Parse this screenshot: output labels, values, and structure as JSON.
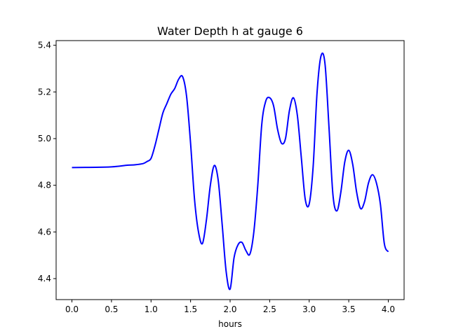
{
  "chart_data": {
    "type": "line",
    "title": "Water Depth h at gauge 6",
    "xlabel": "hours",
    "ylabel": "",
    "xlim": [
      -0.2,
      4.2
    ],
    "ylim": [
      4.31,
      5.42
    ],
    "x_ticks": [
      0.0,
      0.5,
      1.0,
      1.5,
      2.0,
      2.5,
      3.0,
      3.5,
      4.0
    ],
    "x_tick_labels": [
      "0.0",
      "0.5",
      "1.0",
      "1.5",
      "2.0",
      "2.5",
      "3.0",
      "3.5",
      "4.0"
    ],
    "y_ticks": [
      4.4,
      4.6,
      4.8,
      5.0,
      5.2,
      5.4
    ],
    "y_tick_labels": [
      "4.4",
      "4.6",
      "4.8",
      "5.0",
      "5.2",
      "5.4"
    ],
    "grid": false,
    "legend": "none",
    "series": [
      {
        "color": "#0000ff",
        "x": [
          0.0,
          0.3,
          0.5,
          0.6,
          0.7,
          0.8,
          0.9,
          0.95,
          1.0,
          1.05,
          1.1,
          1.15,
          1.2,
          1.25,
          1.3,
          1.35,
          1.4,
          1.45,
          1.5,
          1.55,
          1.6,
          1.65,
          1.7,
          1.75,
          1.8,
          1.85,
          1.9,
          1.95,
          2.0,
          2.05,
          2.1,
          2.15,
          2.2,
          2.25,
          2.3,
          2.35,
          2.4,
          2.45,
          2.5,
          2.55,
          2.6,
          2.65,
          2.7,
          2.75,
          2.8,
          2.85,
          2.9,
          2.95,
          3.0,
          3.05,
          3.1,
          3.15,
          3.2,
          3.25,
          3.3,
          3.35,
          3.4,
          3.45,
          3.5,
          3.55,
          3.6,
          3.65,
          3.7,
          3.75,
          3.8,
          3.85,
          3.9,
          3.95,
          4.0
        ],
        "values": [
          4.876,
          4.877,
          4.879,
          4.882,
          4.886,
          4.888,
          4.893,
          4.902,
          4.915,
          4.97,
          5.04,
          5.11,
          5.15,
          5.19,
          5.215,
          5.255,
          5.265,
          5.18,
          4.98,
          4.74,
          4.6,
          4.55,
          4.65,
          4.8,
          4.885,
          4.82,
          4.63,
          4.43,
          4.355,
          4.49,
          4.545,
          4.555,
          4.52,
          4.505,
          4.6,
          4.8,
          5.06,
          5.16,
          5.175,
          5.14,
          5.04,
          4.98,
          5.0,
          5.12,
          5.175,
          5.1,
          4.92,
          4.74,
          4.72,
          4.88,
          5.2,
          5.355,
          5.32,
          5.05,
          4.76,
          4.69,
          4.77,
          4.9,
          4.95,
          4.89,
          4.77,
          4.7,
          4.73,
          4.81,
          4.845,
          4.81,
          4.72,
          4.55,
          4.515
        ]
      }
    ]
  }
}
